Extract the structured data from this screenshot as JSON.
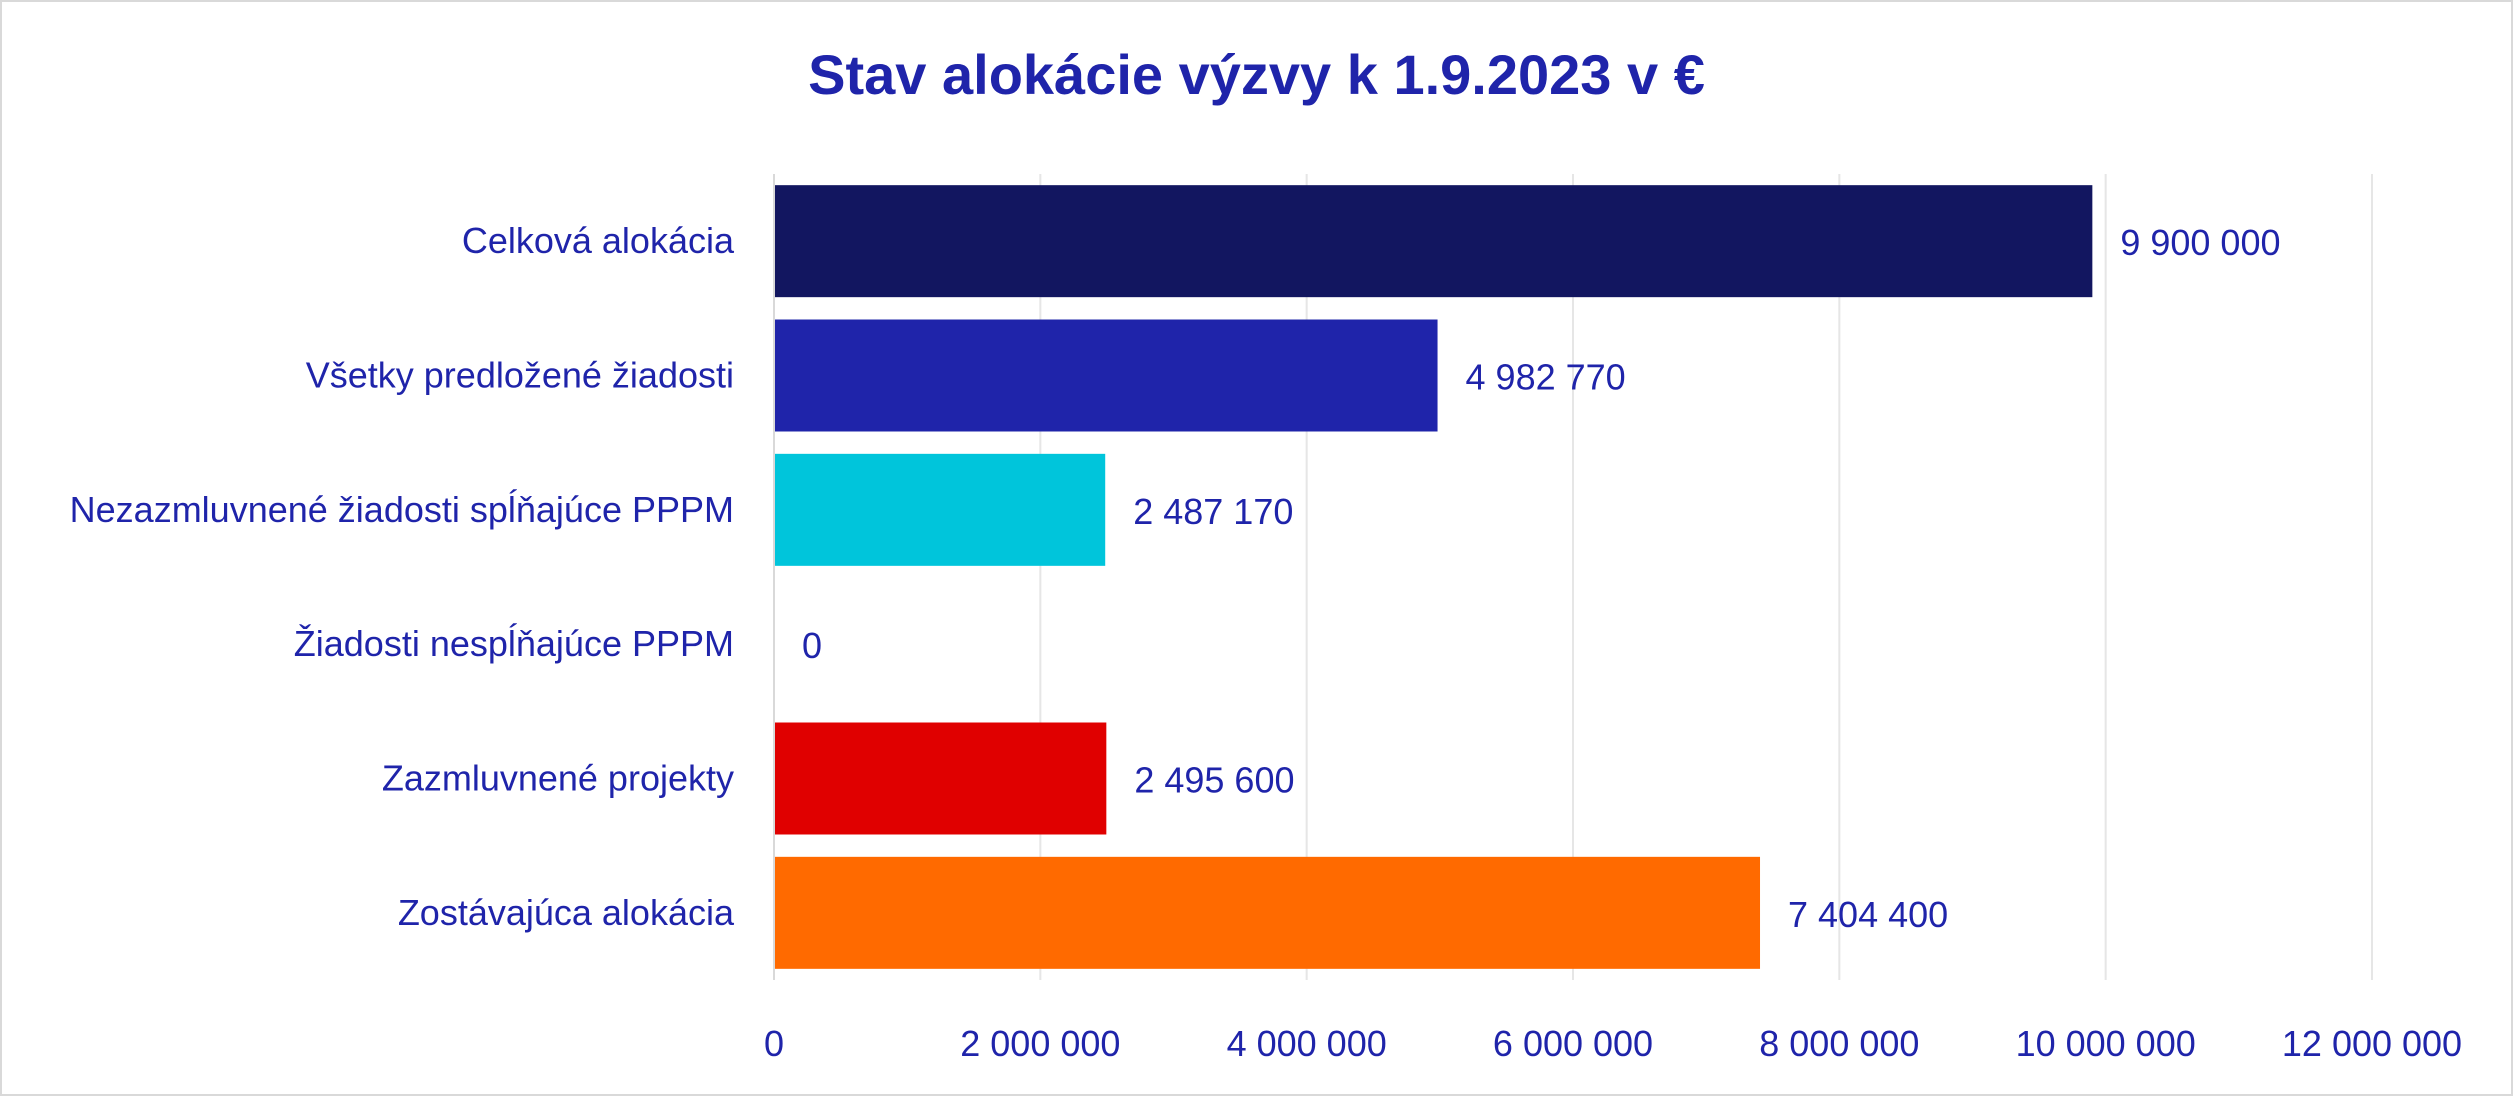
{
  "chart_data": {
    "type": "bar",
    "orientation": "horizontal",
    "title": "Stav alokácie výzvy k 1.9.2023 v €",
    "xlabel": "",
    "ylabel": "",
    "categories": [
      "Celková alokácia",
      "Všetky predložené žiadosti",
      "Nezazmluvnené žiadosti spĺňajúce PPPM",
      "Žiadosti nespĺňajúce PPPM",
      "Zazmluvnené projekty",
      "Zostávajúca alokácia"
    ],
    "values": [
      9900000,
      4982770,
      2487170,
      0,
      2495600,
      7404400
    ],
    "value_labels": [
      "9 900 000",
      "4 982 770",
      "2 487 170",
      "0",
      "2 495 600",
      "7 404 400"
    ],
    "bar_colors": [
      "#121660",
      "#1f24aa",
      "#00c5db",
      "#7f7f7f",
      "#e00000",
      "#ff6a00"
    ],
    "xlim": [
      0,
      12000000
    ],
    "ticks": [
      0,
      2000000,
      4000000,
      6000000,
      8000000,
      10000000,
      12000000
    ],
    "tick_labels": [
      "0",
      "2 000 000",
      "4 000 000",
      "6 000 000",
      "8 000 000",
      "10 000 000",
      "12 000 000"
    ],
    "grid": true,
    "legend": "none",
    "text_color": "#1f24aa",
    "grid_color": "#e6e6e6"
  }
}
